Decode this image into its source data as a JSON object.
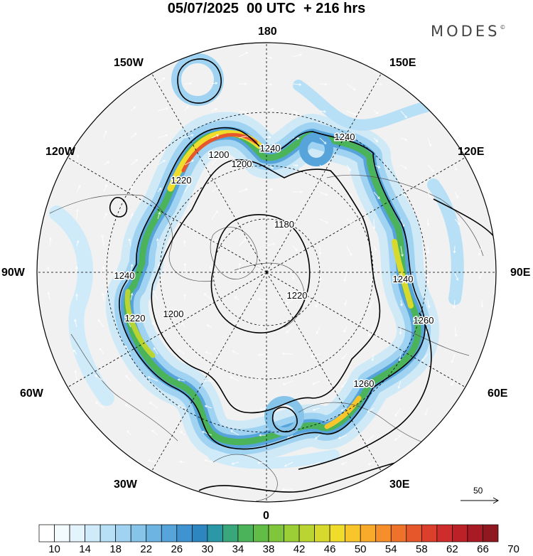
{
  "title": "05/07/2025  00 UTC  + 216 hrs",
  "brand": {
    "name": "MODES",
    "mark": "©"
  },
  "longitude_labels": {
    "n180": "180",
    "w150": "150W",
    "e150": "150E",
    "w120": "120W",
    "e120": "120E",
    "w90": "90W",
    "e90": "90E",
    "w60": "60W",
    "e60": "60E",
    "w30": "30W",
    "e30": "30E",
    "s0": "0"
  },
  "contour_labels": [
    "1240",
    "1200",
    "1220",
    "1240",
    "1220",
    "1180",
    "1240",
    "1200",
    "1220",
    "1200",
    "1240",
    "1260",
    "1260"
  ],
  "reference_vector": {
    "value": "50"
  },
  "colorbar": {
    "ticks": [
      "10",
      "14",
      "18",
      "22",
      "26",
      "30",
      "34",
      "38",
      "42",
      "46",
      "50",
      "54",
      "58",
      "62",
      "66",
      "70"
    ],
    "colors": [
      "#ffffff",
      "#f4fbfe",
      "#e3f4fc",
      "#cfebfa",
      "#b7e0f6",
      "#9fd3f1",
      "#86c4ea",
      "#6db4e2",
      "#56a4da",
      "#3f93d0",
      "#2e86c1",
      "#2a98a6",
      "#3aa67c",
      "#4bb35a",
      "#62bd46",
      "#7fc63c",
      "#9ccf36",
      "#bad431",
      "#d7da2c",
      "#f0dc2a",
      "#f8c62a",
      "#f9aa2b",
      "#f58e2b",
      "#ef722b",
      "#e6572c",
      "#dc3f2c",
      "#cf2d2c",
      "#bd2128",
      "#a81b24",
      "#901820"
    ]
  }
}
